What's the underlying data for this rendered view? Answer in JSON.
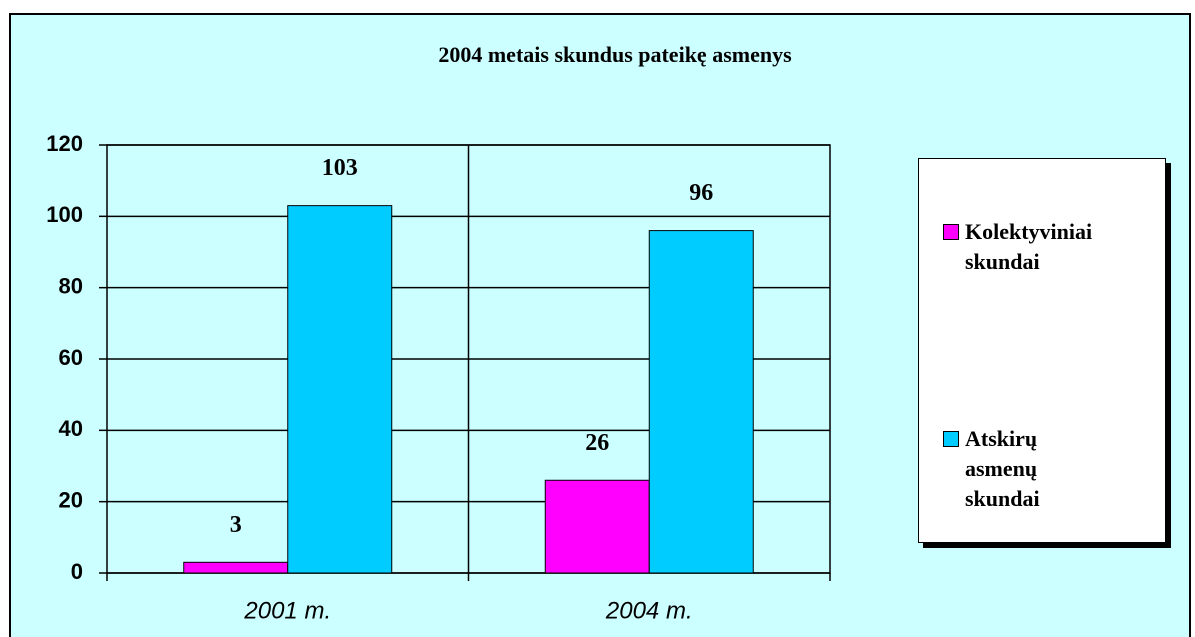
{
  "chart_data": {
    "type": "bar",
    "title": "2004 metais skundus pateikę asmenys",
    "categories": [
      "2001 m.",
      "2004 m."
    ],
    "series": [
      {
        "name": "Kolektyviniai skundai",
        "color": "#ff00ff",
        "values": [
          3,
          26
        ]
      },
      {
        "name": "Atskirų asmenų skundai",
        "color": "#00ccff",
        "values": [
          103,
          96
        ]
      }
    ],
    "ylim": [
      0,
      120
    ],
    "yticks": [
      0,
      20,
      40,
      60,
      80,
      100,
      120
    ],
    "grid": true,
    "legend": "right"
  }
}
